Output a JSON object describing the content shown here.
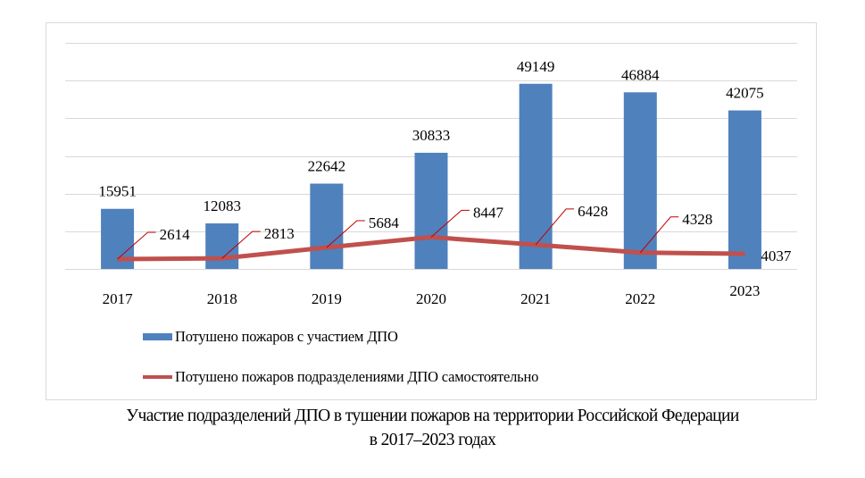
{
  "chart_data": {
    "type": "bar+line",
    "title": "",
    "categories": [
      "2017",
      "2018",
      "2019",
      "2020",
      "2021",
      "2022",
      "2023"
    ],
    "series": [
      {
        "name": "Потушено пожаров с участием ДПО",
        "type": "bar",
        "color": "#4f81bd",
        "values": [
          15951,
          12083,
          22642,
          30833,
          49149,
          46884,
          42075
        ]
      },
      {
        "name": "Потушено пожаров подразделениями ДПО самостоятельно",
        "type": "line",
        "color": "#c0504d",
        "values": [
          2614,
          2813,
          5684,
          8447,
          6428,
          4328,
          4037
        ]
      }
    ],
    "xlabel": "",
    "ylabel": "",
    "ylim": [
      0,
      60000
    ],
    "y_tick_step": 10000,
    "y_axis_labels_visible": false,
    "grid": true,
    "legend_position": "bottom-left"
  },
  "legend": {
    "items": [
      {
        "label": "Потушено пожаров с участием ДПО",
        "kind": "bar",
        "color": "#4f81bd"
      },
      {
        "label": "Потушено пожаров подразделениями ДПО самостоятельно",
        "kind": "line",
        "color": "#c0504d"
      }
    ]
  },
  "caption": {
    "line1": "Участие подразделений ДПО в тушении пожаров на территории Российской Федерации",
    "line2": "в 2017–2023 годах"
  }
}
